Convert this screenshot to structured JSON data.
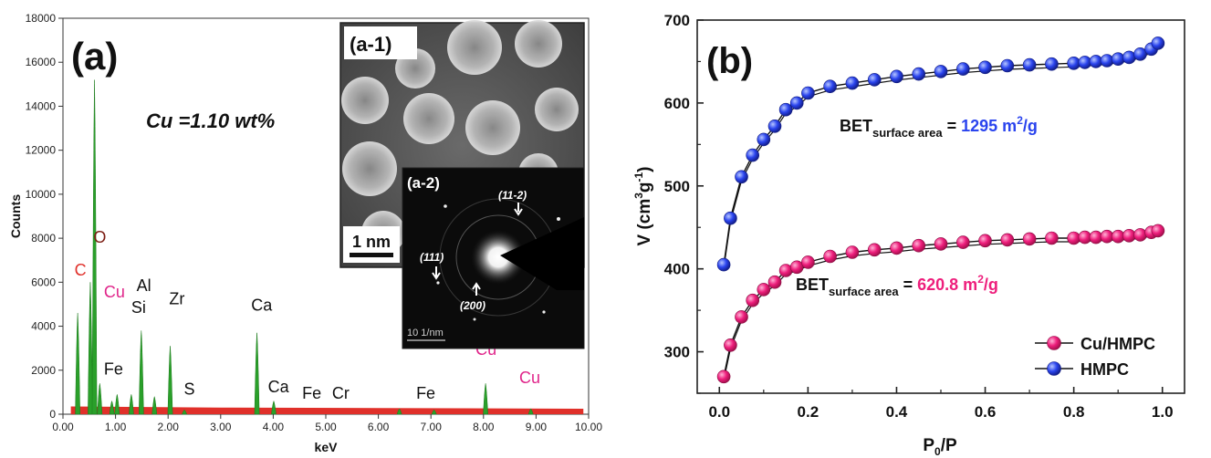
{
  "chart_data": [
    {
      "type": "bar",
      "panel_label": "(a)",
      "xlabel": "keV",
      "ylabel": "Counts",
      "xlim": [
        0,
        10
      ],
      "ylim": [
        0,
        18000
      ],
      "x_ticks": [
        "0.00",
        "1.00",
        "2.00",
        "3.00",
        "4.00",
        "5.00",
        "6.00",
        "7.00",
        "8.00",
        "9.00",
        "10.00"
      ],
      "y_ticks": [
        "0",
        "2000",
        "4000",
        "6000",
        "8000",
        "10000",
        "12000",
        "14000",
        "16000",
        "18000"
      ],
      "annotation": "Cu =1.10  wt%",
      "spectrum_peaks": [
        {
          "kev": 0.28,
          "counts": 4600
        },
        {
          "kev": 0.52,
          "counts": 6000
        },
        {
          "kev": 0.6,
          "counts": 15200
        },
        {
          "kev": 0.7,
          "counts": 1400
        },
        {
          "kev": 0.93,
          "counts": 600
        },
        {
          "kev": 1.03,
          "counts": 900
        },
        {
          "kev": 1.3,
          "counts": 900
        },
        {
          "kev": 1.49,
          "counts": 3800
        },
        {
          "kev": 1.74,
          "counts": 800
        },
        {
          "kev": 2.04,
          "counts": 3100
        },
        {
          "kev": 2.31,
          "counts": 200
        },
        {
          "kev": 3.69,
          "counts": 3700
        },
        {
          "kev": 4.01,
          "counts": 600
        },
        {
          "kev": 6.4,
          "counts": 250
        },
        {
          "kev": 7.06,
          "counts": 200
        },
        {
          "kev": 8.04,
          "counts": 1400
        },
        {
          "kev": 8.9,
          "counts": 250
        }
      ],
      "element_labels": [
        {
          "text": "C",
          "kev": 0.22,
          "counts": 6300,
          "color": "#e0302a"
        },
        {
          "text": "O",
          "kev": 0.58,
          "counts": 7800,
          "color": "#7a1a10"
        },
        {
          "text": "Cu",
          "kev": 0.78,
          "counts": 5300,
          "color": "#e0258a"
        },
        {
          "text": "Al",
          "kev": 1.4,
          "counts": 5600,
          "color": "#111111"
        },
        {
          "text": "Si",
          "kev": 1.3,
          "counts": 4600,
          "color": "#111111"
        },
        {
          "text": "Zr",
          "kev": 2.02,
          "counts": 5000,
          "color": "#111111"
        },
        {
          "text": "Fe",
          "kev": 0.78,
          "counts": 1800,
          "color": "#111111"
        },
        {
          "text": "S",
          "kev": 2.3,
          "counts": 900,
          "color": "#111111"
        },
        {
          "text": "Ca",
          "kev": 3.58,
          "counts": 4700,
          "color": "#111111"
        },
        {
          "text": "Ca",
          "kev": 3.9,
          "counts": 1000,
          "color": "#111111"
        },
        {
          "text": "Fe",
          "kev": 4.55,
          "counts": 700,
          "color": "#111111"
        },
        {
          "text": "Cr",
          "kev": 5.12,
          "counts": 700,
          "color": "#111111"
        },
        {
          "text": "Fe",
          "kev": 6.72,
          "counts": 700,
          "color": "#111111"
        },
        {
          "text": "Cu",
          "kev": 7.85,
          "counts": 2700,
          "color": "#e0258a"
        },
        {
          "text": "Cu",
          "kev": 8.68,
          "counts": 1400,
          "color": "#e0258a"
        }
      ],
      "inset_1": {
        "label": "(a-1)",
        "scale_bar": "1 nm"
      },
      "inset_2": {
        "label": "(a-2)",
        "scale_bar": "10 1/nm",
        "rings": [
          "(11-2)",
          "(111)",
          "(200)"
        ]
      }
    },
    {
      "type": "line",
      "panel_label": "(b)",
      "xlabel": {
        "base": "P",
        "sub": "0",
        "rest": "/P"
      },
      "ylabel": {
        "v": "V (cm",
        "sup": "3",
        "mid": "g",
        "sup2": "-1",
        "end": ")"
      },
      "xlim": [
        -0.05,
        1.05
      ],
      "ylim": [
        250,
        700
      ],
      "x_ticks": [
        "0.0",
        "0.2",
        "0.4",
        "0.6",
        "0.8",
        "1.0"
      ],
      "y_ticks": [
        "300",
        "400",
        "500",
        "600",
        "700"
      ],
      "legend_position": "bottom-right",
      "series": [
        {
          "name": "Cu/HMPC",
          "color": "#ee1e7c",
          "bet": {
            "pre": "BET",
            "sub": "surface area",
            "eq": " = ",
            "value": "620.8 m",
            "sup": "2",
            "unit": "/g"
          },
          "x": [
            0.01,
            0.025,
            0.05,
            0.075,
            0.1,
            0.125,
            0.15,
            0.175,
            0.2,
            0.25,
            0.3,
            0.35,
            0.4,
            0.45,
            0.5,
            0.55,
            0.6,
            0.65,
            0.7,
            0.75,
            0.8,
            0.825,
            0.85,
            0.875,
            0.9,
            0.925,
            0.95,
            0.975,
            0.99
          ],
          "y": [
            270,
            308,
            342,
            362,
            375,
            384,
            398,
            402,
            408,
            415,
            420,
            423,
            425,
            428,
            430,
            432,
            434,
            435,
            436,
            437,
            437,
            438,
            438,
            439,
            439,
            440,
            441,
            444,
            446
          ]
        },
        {
          "name": "HMPC",
          "color": "#2a44ee",
          "bet": {
            "pre": "BET",
            "sub": "surface area",
            "eq": " = ",
            "value": "1295 m",
            "sup": "2",
            "unit": "/g"
          },
          "x": [
            0.01,
            0.025,
            0.05,
            0.075,
            0.1,
            0.125,
            0.15,
            0.175,
            0.2,
            0.25,
            0.3,
            0.35,
            0.4,
            0.45,
            0.5,
            0.55,
            0.6,
            0.65,
            0.7,
            0.75,
            0.8,
            0.825,
            0.85,
            0.875,
            0.9,
            0.925,
            0.95,
            0.975,
            0.99
          ],
          "y": [
            405,
            461,
            511,
            537,
            556,
            572,
            592,
            600,
            612,
            620,
            624,
            628,
            632,
            635,
            638,
            641,
            643,
            645,
            646,
            647,
            648,
            649,
            650,
            651,
            653,
            655,
            659,
            665,
            672
          ]
        }
      ]
    }
  ]
}
